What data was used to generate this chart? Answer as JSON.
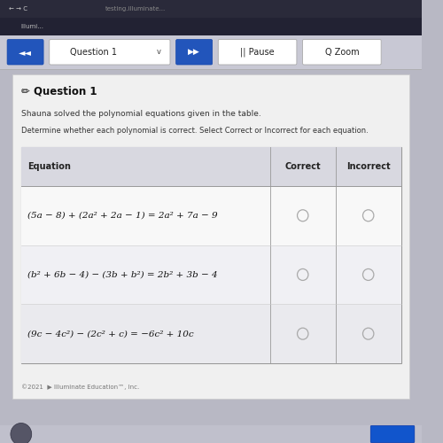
{
  "title": "Question 1",
  "subtitle1": "Shauna solved the polynomial equations given in the table.",
  "subtitle2": "Determine whether each polynomial is correct. Select Correct or Incorrect for each equation.",
  "col_header_eq": "Equation",
  "col_header_correct": "Correct",
  "col_header_incorrect": "Incorrect",
  "equations": [
    "(5a − 8) + (2a² + 2a − 1) = 2a² + 7a − 9",
    "(b² + 6b − 4) − (3b + b²) = 2b² + 3b − 4",
    "(9c − 4c²) − (2c² + c) = −6c² + 10c"
  ],
  "copyright_text": "©2021  ▶ Illuminate Education™, Inc.",
  "nav_label": "Question 1",
  "top_bar_color": "#2a2a3a",
  "second_bar_color": "#1a1a2e",
  "toolbar_bg": "#c8c8d4",
  "page_bg": "#b8b8c4",
  "content_bg": "#f0f0f0",
  "table_header_bg": "#d8d8e0",
  "table_row1_bg": "#f8f8f8",
  "table_row2_bg": "#f0f0f4",
  "table_row3_bg": "#eaeaee",
  "circle_color": "#aaaaaa",
  "border_color": "#999999",
  "blue_btn_color": "#2255bb",
  "bottom_bar_color": "#c0c0cc"
}
